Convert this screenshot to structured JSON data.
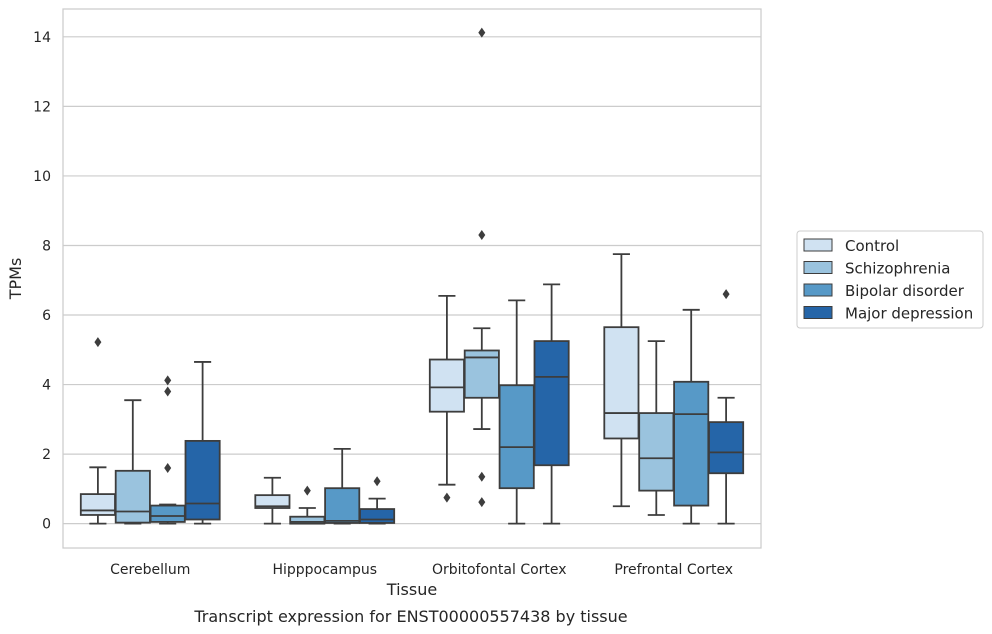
{
  "caption": "Transcript expression for ENST00000557438 by tissue",
  "chart_data": {
    "type": "box",
    "title": "",
    "xlabel": "Tissue",
    "ylabel": "TPMs",
    "ylim": [
      -0.7,
      14.8
    ],
    "yticks": [
      0,
      2,
      4,
      6,
      8,
      10,
      12,
      14
    ],
    "grid": true,
    "legend_position": "right, outside",
    "categories": [
      "Cerebellum",
      "Hipppocampus",
      "Orbitofontal Cortex",
      "Prefrontal Cortex"
    ],
    "series": [
      {
        "name": "Control",
        "color": "#d0e2f2",
        "boxes": [
          {
            "whisker_low": 0.0,
            "q1": 0.25,
            "median": 0.38,
            "q3": 0.85,
            "whisker_high": 1.62,
            "outliers": [
              5.22
            ]
          },
          {
            "whisker_low": 0.0,
            "q1": 0.45,
            "median": 0.5,
            "q3": 0.82,
            "whisker_high": 1.32,
            "outliers": []
          },
          {
            "whisker_low": 1.12,
            "q1": 3.22,
            "median": 3.92,
            "q3": 4.72,
            "whisker_high": 6.55,
            "outliers": [
              0.75
            ]
          },
          {
            "whisker_low": 0.5,
            "q1": 2.45,
            "median": 3.18,
            "q3": 5.65,
            "whisker_high": 7.75,
            "outliers": []
          }
        ]
      },
      {
        "name": "Schizophrenia",
        "color": "#9ac3de",
        "boxes": [
          {
            "whisker_low": 0.0,
            "q1": 0.03,
            "median": 0.35,
            "q3": 1.52,
            "whisker_high": 3.55,
            "outliers": []
          },
          {
            "whisker_low": 0.0,
            "q1": 0.0,
            "median": 0.05,
            "q3": 0.2,
            "whisker_high": 0.45,
            "outliers": [
              0.95
            ]
          },
          {
            "whisker_low": 2.72,
            "q1": 3.62,
            "median": 4.78,
            "q3": 4.98,
            "whisker_high": 5.62,
            "outliers": [
              14.12,
              8.3,
              1.35,
              0.62
            ]
          },
          {
            "whisker_low": 0.25,
            "q1": 0.95,
            "median": 1.88,
            "q3": 3.18,
            "whisker_high": 5.25,
            "outliers": []
          }
        ]
      },
      {
        "name": "Bipolar disorder",
        "color": "#5799c7",
        "boxes": [
          {
            "whisker_low": 0.0,
            "q1": 0.05,
            "median": 0.22,
            "q3": 0.52,
            "whisker_high": 0.55,
            "outliers": [
              3.8,
              4.12,
              1.6
            ]
          },
          {
            "whisker_low": 0.0,
            "q1": 0.02,
            "median": 0.08,
            "q3": 1.02,
            "whisker_high": 2.15,
            "outliers": []
          },
          {
            "whisker_low": 0.0,
            "q1": 1.02,
            "median": 2.2,
            "q3": 3.98,
            "whisker_high": 6.42,
            "outliers": []
          },
          {
            "whisker_low": 0.0,
            "q1": 0.52,
            "median": 3.15,
            "q3": 4.08,
            "whisker_high": 6.15,
            "outliers": []
          }
        ]
      },
      {
        "name": "Major depression",
        "color": "#2565a8",
        "boxes": [
          {
            "whisker_low": 0.0,
            "q1": 0.12,
            "median": 0.58,
            "q3": 2.38,
            "whisker_high": 4.65,
            "outliers": []
          },
          {
            "whisker_low": 0.0,
            "q1": 0.02,
            "median": 0.12,
            "q3": 0.42,
            "whisker_high": 0.72,
            "outliers": [
              1.22
            ]
          },
          {
            "whisker_low": 0.0,
            "q1": 1.68,
            "median": 4.22,
            "q3": 5.25,
            "whisker_high": 6.88,
            "outliers": []
          },
          {
            "whisker_low": 0.0,
            "q1": 1.45,
            "median": 2.05,
            "q3": 2.92,
            "whisker_high": 3.62,
            "outliers": [
              6.6
            ]
          }
        ]
      }
    ]
  }
}
